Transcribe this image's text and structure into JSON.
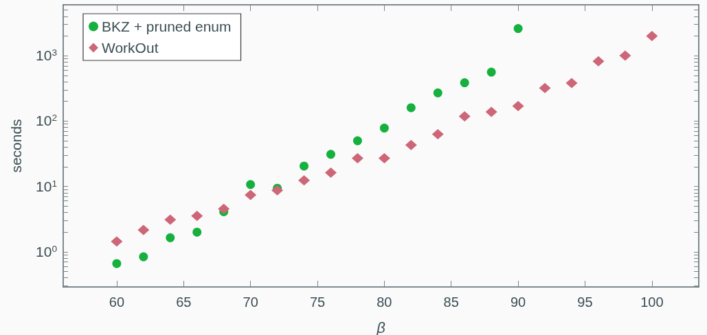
{
  "chart_data": {
    "type": "scatter",
    "xlabel": "β",
    "ylabel": "seconds",
    "log": "y",
    "legend": "top left",
    "xlim": [
      56,
      103.5
    ],
    "xticks": [
      60,
      65,
      70,
      75,
      80,
      85,
      90,
      95,
      100
    ],
    "ylim": [
      0.29,
      6000
    ],
    "yticks": [
      {
        "value": 0.3,
        "label": null
      },
      {
        "value": 0.4,
        "label": null
      },
      {
        "value": 0.5,
        "label": null
      },
      {
        "value": 0.6,
        "label": null
      },
      {
        "value": 0.7,
        "label": null
      },
      {
        "value": 0.8,
        "label": null
      },
      {
        "value": 0.9,
        "label": null
      },
      {
        "value": 1,
        "label": "10$^{0}$"
      },
      {
        "value": 2,
        "label": null
      },
      {
        "value": 3,
        "label": null
      },
      {
        "value": 4,
        "label": null
      },
      {
        "value": 5,
        "label": null
      },
      {
        "value": 6,
        "label": null
      },
      {
        "value": 7,
        "label": null
      },
      {
        "value": 8,
        "label": null
      },
      {
        "value": 9,
        "label": null
      },
      {
        "value": 10,
        "label": "10$^{1}$"
      },
      {
        "value": 20,
        "label": null
      },
      {
        "value": 30,
        "label": null
      },
      {
        "value": 40,
        "label": null
      },
      {
        "value": 50,
        "label": null
      },
      {
        "value": 60,
        "label": null
      },
      {
        "value": 70,
        "label": null
      },
      {
        "value": 80,
        "label": null
      },
      {
        "value": 90,
        "label": null
      },
      {
        "value": 100,
        "label": "10$^{2}$"
      },
      {
        "value": 200,
        "label": null
      },
      {
        "value": 300,
        "label": null
      },
      {
        "value": 400,
        "label": null
      },
      {
        "value": 500,
        "label": null
      },
      {
        "value": 600,
        "label": null
      },
      {
        "value": 700,
        "label": null
      },
      {
        "value": 800,
        "label": null
      },
      {
        "value": 900,
        "label": null
      },
      {
        "value": 1000,
        "label": "10$^{3}$"
      },
      {
        "value": 2000,
        "label": null
      },
      {
        "value": 3000,
        "label": null
      },
      {
        "value": 4000,
        "label": null
      },
      {
        "value": 5000,
        "label": null
      }
    ],
    "series": [
      {
        "name": "BKZ + pruned enum",
        "color": "#15b03d",
        "marker": "circle",
        "x": [
          60,
          62,
          64,
          66,
          68,
          70,
          72,
          74,
          76,
          78,
          80,
          82,
          84,
          86,
          88,
          90
        ],
        "values": [
          0.66,
          0.84,
          1.64,
          2.0,
          4.1,
          10.7,
          9.4,
          20.5,
          31,
          50,
          78,
          160,
          270,
          385,
          560,
          2600
        ]
      },
      {
        "name": "WorkOut",
        "color": "#cd6676",
        "marker": "diamond",
        "x": [
          60,
          62,
          64,
          66,
          68,
          70,
          72,
          74,
          76,
          78,
          80,
          82,
          84,
          86,
          88,
          90,
          92,
          94,
          96,
          98,
          100
        ],
        "values": [
          1.44,
          2.16,
          3.1,
          3.55,
          4.55,
          7.4,
          8.7,
          12.4,
          16.2,
          27,
          27,
          43,
          63,
          118,
          138,
          170,
          320,
          380,
          820,
          1000,
          2000
        ]
      }
    ]
  }
}
